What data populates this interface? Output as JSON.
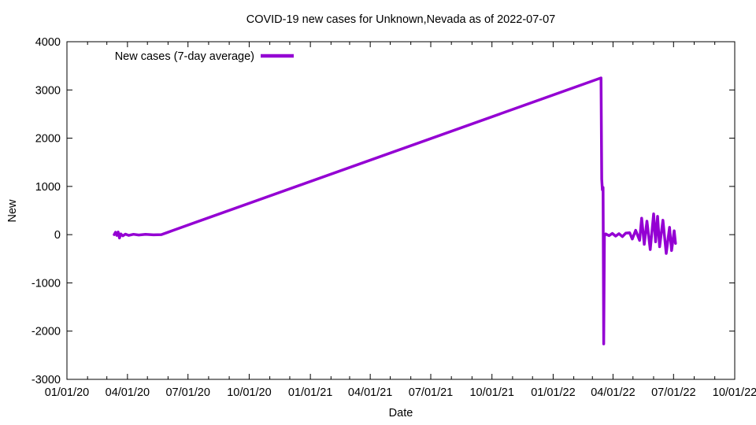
{
  "chart_data": {
    "type": "line",
    "title": "COVID-19 new cases for Unknown,Nevada as of 2022-07-07",
    "xlabel": "Date",
    "ylabel": "New",
    "background_color": "#ffffff",
    "axis_color": "#000000",
    "grid": false,
    "legend_position": "top-left-inside",
    "x_axis": {
      "unit": "days since 2020-01-01",
      "range_days": [
        0,
        1004
      ],
      "major_ticks": [
        {
          "label": "01/01/20",
          "day": 0
        },
        {
          "label": "04/01/20",
          "day": 91
        },
        {
          "label": "07/01/20",
          "day": 182
        },
        {
          "label": "10/01/20",
          "day": 274
        },
        {
          "label": "01/01/21",
          "day": 366
        },
        {
          "label": "04/01/21",
          "day": 456
        },
        {
          "label": "07/01/21",
          "day": 547
        },
        {
          "label": "10/01/21",
          "day": 639
        },
        {
          "label": "01/01/22",
          "day": 731
        },
        {
          "label": "04/01/22",
          "day": 821
        },
        {
          "label": "07/01/22",
          "day": 912
        },
        {
          "label": "10/01/22",
          "day": 1004
        }
      ],
      "minor_tick_days": [
        31,
        60,
        121,
        152,
        213,
        244,
        305,
        335,
        397,
        425,
        486,
        517,
        578,
        609,
        670,
        700,
        762,
        790,
        851,
        882,
        943,
        974
      ]
    },
    "y_axis": {
      "range": [
        -3000,
        4000
      ],
      "tick_step": 1000,
      "tick_values": [
        -3000,
        -2000,
        -1000,
        0,
        1000,
        2000,
        3000,
        4000
      ]
    },
    "series": [
      {
        "name": "New cases (7-day average)",
        "color": "#9400d3",
        "points": [
          [
            71,
            0
          ],
          [
            73,
            50
          ],
          [
            75,
            -15
          ],
          [
            77,
            55
          ],
          [
            79,
            -70
          ],
          [
            81,
            15
          ],
          [
            84,
            -25
          ],
          [
            88,
            10
          ],
          [
            93,
            -15
          ],
          [
            100,
            8
          ],
          [
            108,
            -8
          ],
          [
            118,
            5
          ],
          [
            130,
            -4
          ],
          [
            142,
            0
          ],
          [
            150,
            40
          ],
          [
            160,
            90
          ],
          [
            803,
            3250
          ],
          [
            804,
            1150
          ],
          [
            805,
            930
          ],
          [
            806,
            980
          ],
          [
            807,
            -2265
          ],
          [
            808,
            -30
          ],
          [
            810,
            15
          ],
          [
            815,
            -20
          ],
          [
            820,
            25
          ],
          [
            825,
            -30
          ],
          [
            830,
            20
          ],
          [
            835,
            -40
          ],
          [
            840,
            30
          ],
          [
            846,
            40
          ],
          [
            850,
            -90
          ],
          [
            855,
            90
          ],
          [
            861,
            -120
          ],
          [
            864,
            340
          ],
          [
            868,
            -200
          ],
          [
            872,
            280
          ],
          [
            877,
            -310
          ],
          [
            882,
            430
          ],
          [
            885,
            -150
          ],
          [
            888,
            380
          ],
          [
            891,
            -250
          ],
          [
            896,
            300
          ],
          [
            901,
            -390
          ],
          [
            906,
            150
          ],
          [
            909,
            -330
          ],
          [
            913,
            80
          ],
          [
            915,
            -180
          ]
        ]
      }
    ]
  }
}
